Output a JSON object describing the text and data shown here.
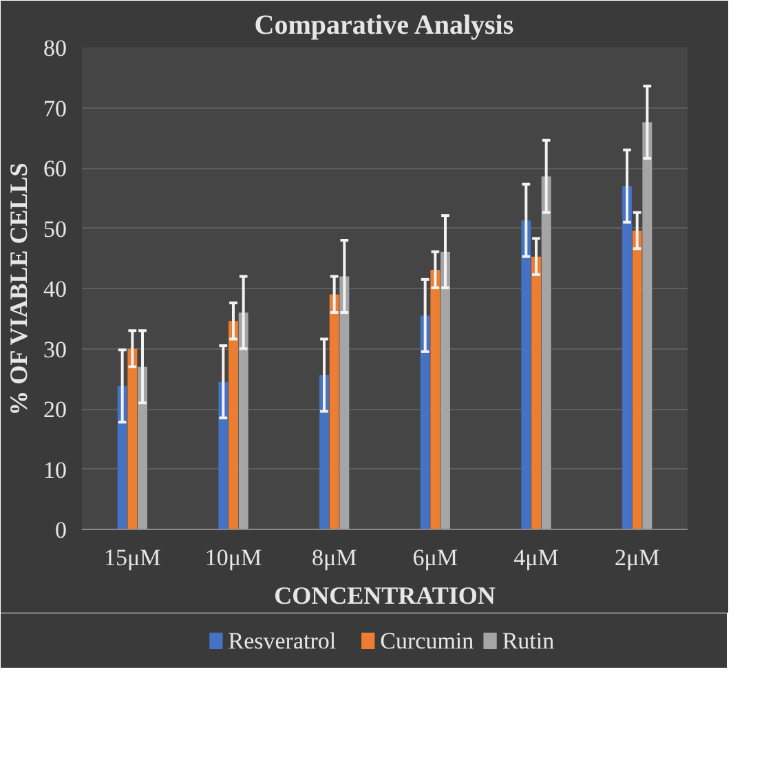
{
  "chart_data": {
    "type": "bar",
    "title": "Comparative Analysis",
    "xlabel": "CONCENTRATION",
    "ylabel": "% OF VIABLE CELLS",
    "categories": [
      "15μM",
      "10μM",
      "8μM",
      "6μM",
      "4μM",
      "2μM"
    ],
    "series": [
      {
        "name": "Resveratrol",
        "color": "#4472c4",
        "values": [
          23.8,
          24.5,
          25.6,
          35.5,
          51.3,
          57
        ],
        "errors": [
          6,
          6,
          6,
          6,
          6,
          6
        ]
      },
      {
        "name": "Curcumin",
        "color": "#ed7d31",
        "values": [
          30,
          34.6,
          39,
          43.1,
          45.3,
          49.6
        ],
        "errors": [
          3,
          3,
          3,
          3,
          3,
          3
        ]
      },
      {
        "name": "Rutin",
        "color": "#a5a5a5",
        "values": [
          27,
          36,
          42,
          46.1,
          58.6,
          67.6
        ],
        "errors": [
          6,
          6,
          6,
          6,
          6,
          6
        ]
      }
    ],
    "ylim": [
      0,
      80
    ],
    "yticks": [
      0,
      10,
      20,
      30,
      40,
      50,
      60,
      70,
      80
    ],
    "grid": "y",
    "legend": "bottom"
  }
}
